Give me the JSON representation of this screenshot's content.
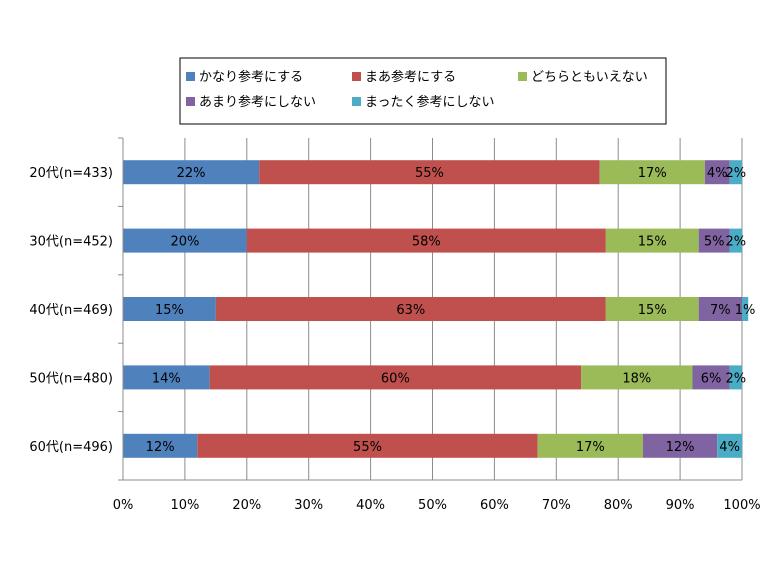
{
  "chart_data": {
    "type": "bar",
    "orientation": "horizontal",
    "stacked": "percent",
    "categories": [
      "20代(n=433)",
      "30代(n=452)",
      "40代(n=469)",
      "50代(n=480)",
      "60代(n=496)"
    ],
    "series": [
      {
        "name": "かなり参考にする",
        "color": "#4f81bd",
        "values": [
          22,
          20,
          15,
          14,
          12
        ]
      },
      {
        "name": "まあ参考にする",
        "color": "#c0504d",
        "values": [
          55,
          58,
          63,
          60,
          55
        ]
      },
      {
        "name": "どちらともいえない",
        "color": "#9bbb59",
        "values": [
          17,
          15,
          15,
          18,
          17
        ]
      },
      {
        "name": "あまり参考にしない",
        "color": "#8064a2",
        "values": [
          4,
          5,
          7,
          6,
          12
        ]
      },
      {
        "name": "まったく参考にしない",
        "color": "#4bacc6",
        "values": [
          2,
          2,
          1,
          2,
          4
        ]
      }
    ],
    "value_suffix": "%",
    "xlim": [
      0,
      100
    ],
    "x_ticks": [
      "0%",
      "10%",
      "20%",
      "30%",
      "40%",
      "50%",
      "60%",
      "70%",
      "80%",
      "90%",
      "100%"
    ],
    "grid": true,
    "legend_position": "top"
  }
}
